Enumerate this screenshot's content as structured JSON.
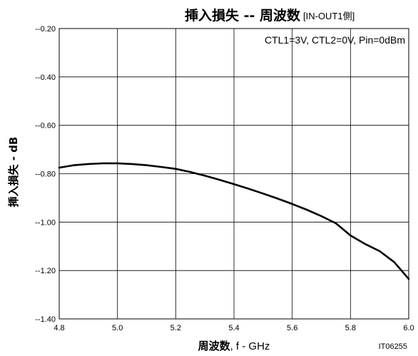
{
  "chart_data": {
    "type": "line",
    "title": "挿入損失 -- 周波数",
    "title_suffix": "[IN-OUT1側]",
    "condition": "CTL1=3V, CTL2=0V, Pin=0dBm",
    "xlabel_bold": "周波数",
    "xlabel_rest": ", f - GHz",
    "ylabel": "挿入損失 - dB",
    "figure_code": "IT06255",
    "xlim": [
      4.8,
      6.0
    ],
    "ylim": [
      -1.4,
      -0.2
    ],
    "x_ticks": [
      4.8,
      5.0,
      5.2,
      5.4,
      5.6,
      5.8,
      6.0
    ],
    "x_tick_labels": [
      "4.8",
      "5.0",
      "5.2",
      "5.4",
      "5.6",
      "5.8",
      "6.0"
    ],
    "y_ticks": [
      -0.2,
      -0.4,
      -0.6,
      -0.8,
      -1.0,
      -1.2,
      -1.4
    ],
    "y_tick_labels": [
      "--0.20",
      "--0.40",
      "--0.60",
      "--0.80",
      "--1.00",
      "--1.20",
      "--1.40"
    ],
    "grid": true,
    "series": [
      {
        "x": [
          4.8,
          4.85,
          4.9,
          4.95,
          5.0,
          5.05,
          5.1,
          5.15,
          5.2,
          5.25,
          5.3,
          5.35,
          5.4,
          5.45,
          5.5,
          5.55,
          5.6,
          5.65,
          5.7,
          5.75,
          5.8,
          5.85,
          5.9,
          5.95,
          6.0
        ],
        "values": [
          -0.775,
          -0.765,
          -0.76,
          -0.757,
          -0.757,
          -0.76,
          -0.765,
          -0.772,
          -0.78,
          -0.793,
          -0.808,
          -0.825,
          -0.843,
          -0.862,
          -0.882,
          -0.903,
          -0.925,
          -0.949,
          -0.975,
          -1.005,
          -1.055,
          -1.09,
          -1.12,
          -1.165,
          -1.235
        ]
      }
    ]
  }
}
